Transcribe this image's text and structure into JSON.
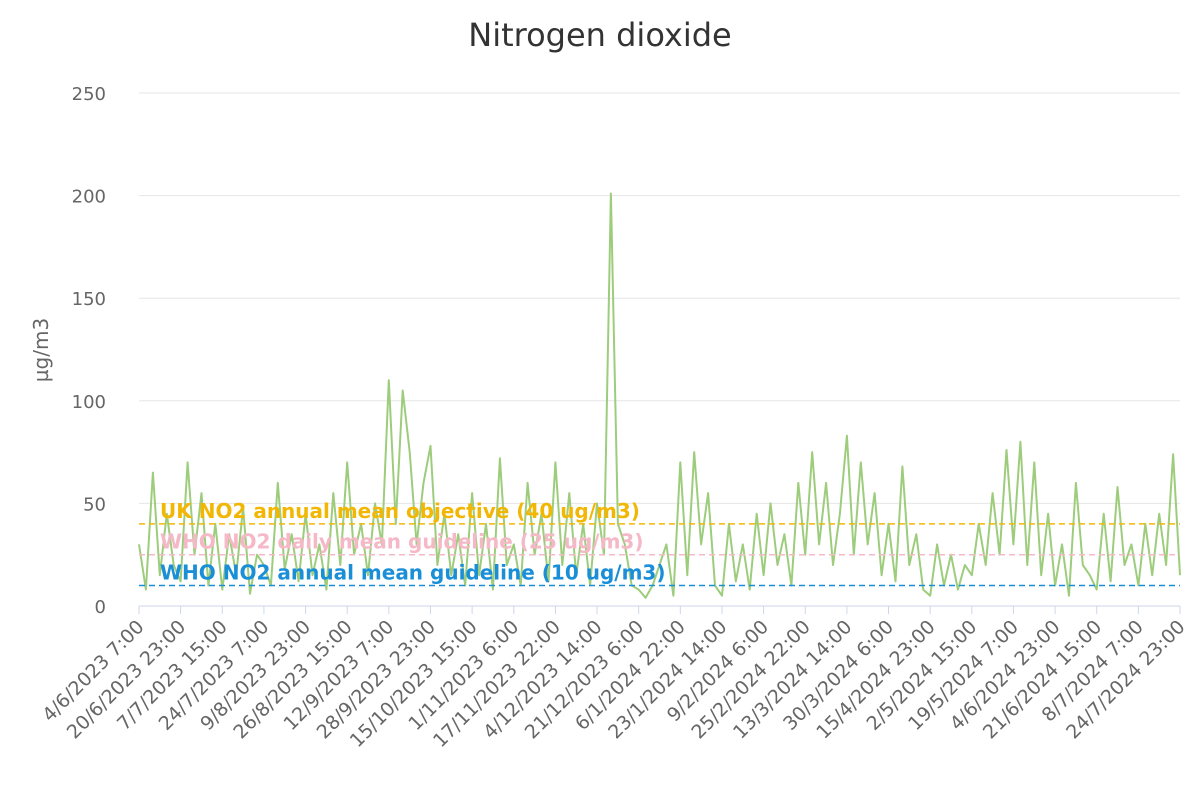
{
  "chart_data": {
    "type": "line",
    "title": "Nitrogen dioxide",
    "y_label": "µg/m3",
    "categories": [
      "4/6/2023 7:00",
      null,
      null,
      null,
      null,
      null,
      "20/6/2023 23:00",
      null,
      null,
      null,
      null,
      null,
      "7/7/2023 15:00",
      null,
      null,
      null,
      null,
      null,
      "24/7/2023 7:00",
      null,
      null,
      null,
      null,
      null,
      "9/8/2023 23:00",
      null,
      null,
      null,
      null,
      null,
      "26/8/2023 15:00",
      null,
      null,
      null,
      null,
      null,
      "12/9/2023 7:00",
      null,
      null,
      null,
      null,
      null,
      "28/9/2023 23:00",
      null,
      null,
      null,
      null,
      null,
      "15/10/2023 15:00",
      null,
      null,
      null,
      null,
      null,
      "1/11/2023 6:00",
      null,
      null,
      null,
      null,
      null,
      "17/11/2023 22:00",
      null,
      null,
      null,
      null,
      null,
      "4/12/2023 14:00",
      null,
      null,
      null,
      null,
      null,
      "21/12/2023 6:00",
      null,
      null,
      null,
      null,
      null,
      "6/1/2024 22:00",
      null,
      null,
      null,
      null,
      null,
      "23/1/2024 14:00",
      null,
      null,
      null,
      null,
      null,
      "9/2/2024 6:00",
      null,
      null,
      null,
      null,
      null,
      "25/2/2024 22:00",
      null,
      null,
      null,
      null,
      null,
      "13/3/2024 14:00",
      null,
      null,
      null,
      null,
      null,
      "30/3/2024 6:00",
      null,
      null,
      null,
      null,
      null,
      "15/4/2024 23:00",
      null,
      null,
      null,
      null,
      null,
      "2/5/2024 15:00",
      null,
      null,
      null,
      null,
      null,
      "19/5/2024 7:00",
      null,
      null,
      null,
      null,
      null,
      "4/6/2024 23:00",
      null,
      null,
      null,
      null,
      null,
      "21/6/2024 15:00",
      null,
      null,
      null,
      null,
      null,
      "8/7/2024 7:00",
      null,
      null,
      null,
      null,
      null,
      "24/7/2024 23:00"
    ],
    "series": [
      {
        "color": "#9dcd7c",
        "values": [
          30,
          8,
          65,
          15,
          45,
          20,
          12,
          70,
          25,
          55,
          10,
          40,
          8,
          35,
          15,
          48,
          6,
          25,
          20,
          10,
          60,
          18,
          35,
          12,
          45,
          15,
          30,
          8,
          55,
          20,
          70,
          25,
          40,
          15,
          50,
          30,
          110,
          40,
          105,
          75,
          30,
          60,
          78,
          20,
          45,
          15,
          35,
          10,
          55,
          15,
          40,
          8,
          72,
          20,
          30,
          10,
          60,
          25,
          45,
          12,
          70,
          20,
          55,
          15,
          40,
          10,
          50,
          25,
          201,
          40,
          30,
          10,
          8,
          4,
          10,
          20,
          30,
          5,
          70,
          15,
          75,
          30,
          55,
          10,
          5,
          40,
          12,
          30,
          8,
          45,
          15,
          50,
          20,
          35,
          10,
          60,
          25,
          75,
          30,
          60,
          20,
          45,
          83,
          25,
          70,
          30,
          55,
          15,
          40,
          12,
          68,
          20,
          35,
          8,
          5,
          30,
          10,
          25,
          8,
          20,
          15,
          40,
          20,
          55,
          25,
          76,
          30,
          80,
          20,
          70,
          15,
          45,
          10,
          30,
          5,
          60,
          20,
          15,
          8,
          45,
          12,
          58,
          20,
          30,
          10,
          40,
          15,
          45,
          20,
          74,
          15
        ]
      }
    ],
    "reference_lines": [
      {
        "label": "UK NO2 annual mean objective (40 ug/m3)",
        "value": 40,
        "color": "#f2b705"
      },
      {
        "label": "WHO NO2 daily mean guideline (25 ug/m3)",
        "value": 25,
        "color": "#f4b8c6"
      },
      {
        "label": "WHO NO2 annual mean guideline (10 ug/m3)",
        "value": 10,
        "color": "#1a8fd8"
      }
    ],
    "ylim": [
      0,
      250
    ],
    "yticks": [
      0,
      50,
      100,
      150,
      200,
      250
    ],
    "grid": true
  }
}
